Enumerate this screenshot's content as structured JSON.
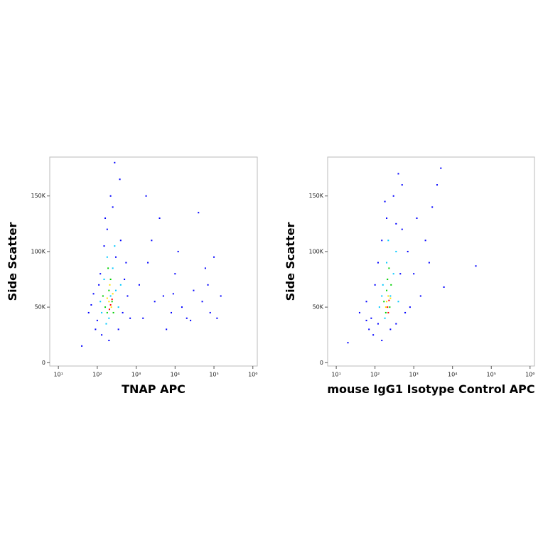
{
  "chart_data": [
    {
      "type": "scatter",
      "xlabel": "TNAP APC",
      "ylabel": "Side Scatter",
      "xscale": "log",
      "xlim": [
        6,
        1300000
      ],
      "ylim": [
        -3000,
        185000
      ],
      "xticks": [
        {
          "value": 10,
          "label": "10¹"
        },
        {
          "value": 100,
          "label": "10²"
        },
        {
          "value": 1000,
          "label": "10³"
        },
        {
          "value": 10000,
          "label": "10⁴"
        },
        {
          "value": 100000,
          "label": "10⁵"
        },
        {
          "value": 1000000,
          "label": "10⁶"
        }
      ],
      "yticks": [
        0,
        {
          "value": 50000,
          "label": "50K"
        },
        {
          "value": 100000,
          "label": "100K"
        },
        {
          "value": 150000,
          "label": "150K"
        }
      ],
      "series": [
        {
          "color": "#0000ff",
          "x": [
            60,
            80,
            100,
            120,
            150,
            180,
            250,
            300,
            400,
            500,
            600,
            700,
            90,
            130,
            200,
            350,
            450,
            160,
            220,
            280,
            380,
            70,
            110,
            550,
            40,
            1200,
            2000,
            3000,
            5000,
            8000,
            10000,
            15000,
            20000,
            30000,
            50000,
            80000,
            100000,
            120000,
            1500,
            2500,
            4000,
            6000,
            12000,
            40000,
            70000,
            150000,
            1800,
            25000,
            60000,
            9000
          ],
          "y": [
            45000,
            62000,
            38000,
            80000,
            105000,
            120000,
            140000,
            95000,
            110000,
            75000,
            60000,
            40000,
            30000,
            25000,
            20000,
            30000,
            45000,
            130000,
            150000,
            180000,
            165000,
            52000,
            70000,
            90000,
            15000,
            70000,
            90000,
            55000,
            60000,
            45000,
            80000,
            50000,
            40000,
            65000,
            55000,
            45000,
            95000,
            40000,
            40000,
            110000,
            130000,
            30000,
            100000,
            135000,
            70000,
            60000,
            150000,
            38000,
            85000,
            62000
          ]
        },
        {
          "color": "#00c8ff",
          "x": [
            120,
            150,
            180,
            250,
            300,
            200,
            130,
            350,
            280,
            170,
            220,
            400
          ],
          "y": [
            55000,
            75000,
            95000,
            85000,
            65000,
            40000,
            45000,
            50000,
            105000,
            35000,
            60000,
            70000
          ]
        },
        {
          "color": "#00d000",
          "x": [
            160,
            200,
            240,
            180,
            220,
            260,
            190,
            140
          ],
          "y": [
            50000,
            65000,
            55000,
            45000,
            75000,
            45000,
            85000,
            60000
          ]
        },
        {
          "color": "#ffe000",
          "x": [
            200,
            230,
            180,
            210,
            250
          ],
          "y": [
            55000,
            50000,
            58000,
            70000,
            62000
          ]
        },
        {
          "color": "#ff0000",
          "x": [
            220,
            240,
            205
          ],
          "y": [
            52000,
            57000,
            48000
          ]
        }
      ]
    },
    {
      "type": "scatter",
      "xlabel": "mouse IgG1 Isotype Control APC",
      "ylabel": "Side Scatter",
      "xscale": "log",
      "xlim": [
        6,
        1300000
      ],
      "ylim": [
        -3000,
        185000
      ],
      "xticks": [
        {
          "value": 10,
          "label": "10¹"
        },
        {
          "value": 100,
          "label": "10²"
        },
        {
          "value": 1000,
          "label": "10³"
        },
        {
          "value": 10000,
          "label": "10⁴"
        },
        {
          "value": 100000,
          "label": "10⁵"
        },
        {
          "value": 1000000,
          "label": "10⁶"
        }
      ],
      "yticks": [
        0,
        {
          "value": 50000,
          "label": "50K"
        },
        {
          "value": 100000,
          "label": "100K"
        },
        {
          "value": 150000,
          "label": "150K"
        }
      ],
      "series": [
        {
          "color": "#0000ff",
          "x": [
            40,
            60,
            80,
            100,
            120,
            150,
            200,
            300,
            400,
            500,
            700,
            1000,
            1500,
            2000,
            3000,
            5000,
            800,
            90,
            150,
            250,
            350,
            600,
            70,
            120,
            500,
            2500,
            40000,
            1200,
            4000,
            20,
            6000,
            180,
            450,
            350,
            60
          ],
          "y": [
            45000,
            55000,
            40000,
            70000,
            90000,
            110000,
            130000,
            150000,
            170000,
            120000,
            100000,
            80000,
            60000,
            110000,
            140000,
            175000,
            50000,
            25000,
            20000,
            30000,
            35000,
            45000,
            30000,
            35000,
            160000,
            90000,
            87000,
            130000,
            160000,
            18000,
            68000,
            145000,
            80000,
            125000,
            38000
          ]
        },
        {
          "color": "#00c8ff",
          "x": [
            130,
            160,
            200,
            250,
            300,
            350,
            180,
            150,
            400,
            220
          ],
          "y": [
            50000,
            70000,
            90000,
            60000,
            80000,
            100000,
            40000,
            60000,
            55000,
            110000
          ]
        },
        {
          "color": "#00d000",
          "x": [
            170,
            200,
            240,
            210,
            260,
            190,
            230
          ],
          "y": [
            55000,
            65000,
            50000,
            75000,
            70000,
            45000,
            85000
          ]
        },
        {
          "color": "#ffe000",
          "x": [
            200,
            220,
            250,
            190
          ],
          "y": [
            55000,
            60000,
            58000,
            50000
          ]
        },
        {
          "color": "#ff0000",
          "x": [
            210,
            230,
            220
          ],
          "y": [
            50000,
            56000,
            45000
          ]
        }
      ]
    }
  ]
}
